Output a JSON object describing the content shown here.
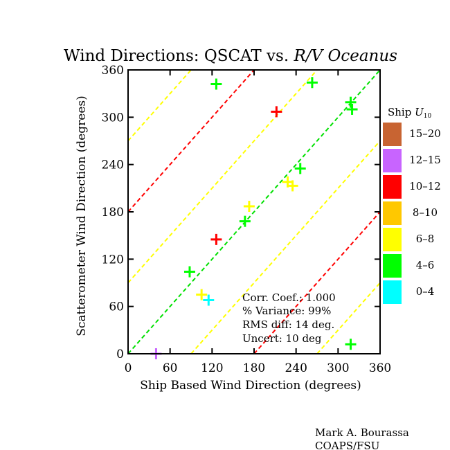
{
  "chart_data": {
    "type": "scatter",
    "title_prefix": "Wind Directions: QSCAT vs. ",
    "title_italic": "R/V Oceanus",
    "xlabel": "Ship Based Wind Direction  (degrees)",
    "ylabel": "Scatterometer Wind Direction  (degrees)",
    "xlim": [
      0,
      360
    ],
    "ylim": [
      0,
      360
    ],
    "xticks": [
      "0",
      "60",
      "120",
      "180",
      "240",
      "300",
      "360"
    ],
    "yticks": [
      "0",
      "60",
      "120",
      "180",
      "240",
      "300",
      "360"
    ],
    "tick_values": [
      0,
      60,
      120,
      180,
      240,
      300,
      360
    ],
    "reference_lines": [
      {
        "offset": 0,
        "color": "#00e000"
      },
      {
        "offset": 90,
        "color": "#ffff00"
      },
      {
        "offset": -90,
        "color": "#ffff00"
      },
      {
        "offset": 180,
        "color": "#ff0000"
      },
      {
        "offset": -180,
        "color": "#ff0000"
      },
      {
        "offset": 270,
        "color": "#ffff00"
      },
      {
        "offset": -270,
        "color": "#ffff00"
      }
    ],
    "legend": {
      "title": "Ship U",
      "title_subscript": "10",
      "placement": "right",
      "entries": [
        {
          "label": "15–20",
          "color": "#c86432"
        },
        {
          "label": "12–15",
          "color": "#c864ff"
        },
        {
          "label": "10–12",
          "color": "#ff0000"
        },
        {
          "label": "8–10",
          "color": "#ffc800"
        },
        {
          "label": "6–8",
          "color": "#ffff00"
        },
        {
          "label": "4–6",
          "color": "#00ff00"
        },
        {
          "label": "0–4",
          "color": "#00ffff"
        }
      ]
    },
    "points": [
      {
        "x": 40,
        "y": 0,
        "color": "#c864ff"
      },
      {
        "x": 126,
        "y": 342,
        "color": "#00ff00"
      },
      {
        "x": 212,
        "y": 307,
        "color": "#ff0000"
      },
      {
        "x": 263,
        "y": 344,
        "color": "#00ff00"
      },
      {
        "x": 318,
        "y": 319,
        "color": "#00ff00"
      },
      {
        "x": 320,
        "y": 310,
        "color": "#00ff00"
      },
      {
        "x": 318,
        "y": 12,
        "color": "#00ff00"
      },
      {
        "x": 246,
        "y": 235,
        "color": "#00ff00"
      },
      {
        "x": 228,
        "y": 218,
        "color": "#ffff00"
      },
      {
        "x": 235,
        "y": 213,
        "color": "#ffff00"
      },
      {
        "x": 173,
        "y": 187,
        "color": "#ffff00"
      },
      {
        "x": 167,
        "y": 168,
        "color": "#00ff00"
      },
      {
        "x": 126,
        "y": 145,
        "color": "#ff0000"
      },
      {
        "x": 88,
        "y": 104,
        "color": "#00ff00"
      },
      {
        "x": 105,
        "y": 75,
        "color": "#ffff00"
      },
      {
        "x": 115,
        "y": 68,
        "color": "#00ffff"
      }
    ],
    "stats": [
      "Corr. Coef.: 1.000",
      "% Variance:  99%",
      "RMS diff: 14 deg.",
      "Uncert: 10 deg"
    ]
  },
  "credit": {
    "line1": "Mark A. Bourassa",
    "line2": "COAPS/FSU"
  }
}
